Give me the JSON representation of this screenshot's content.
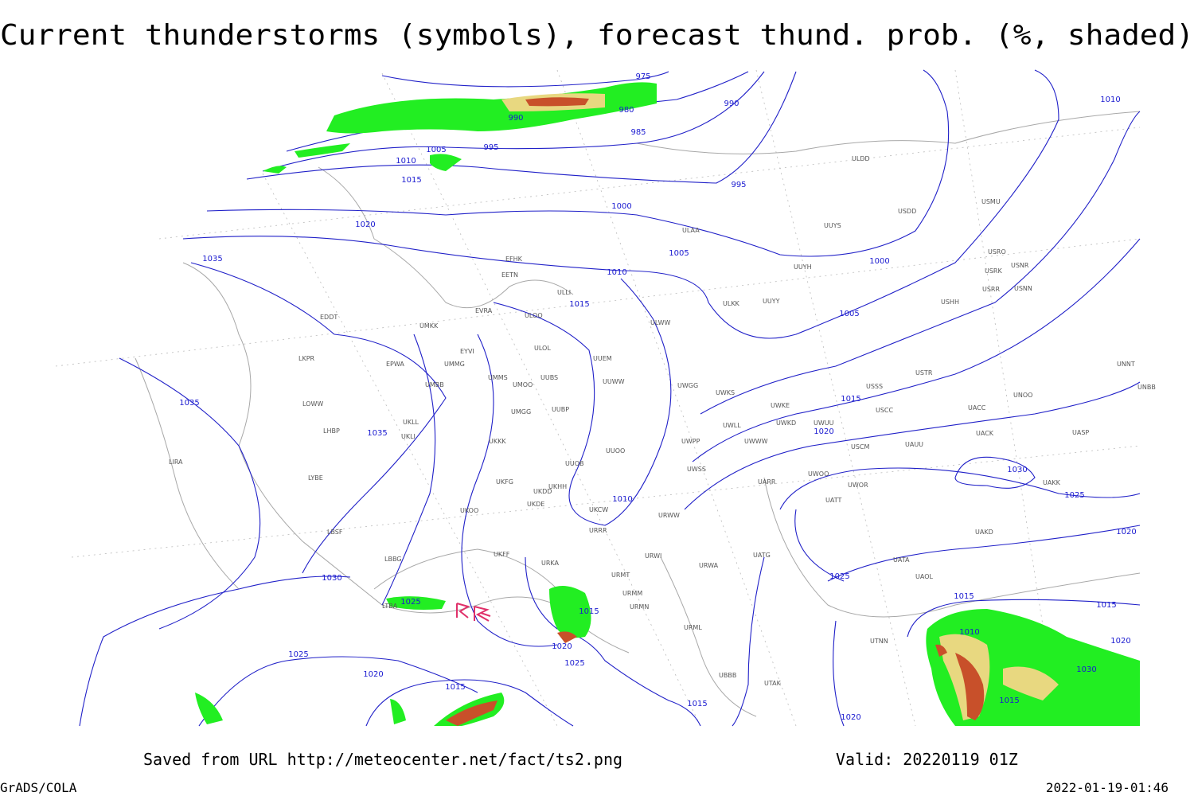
{
  "header": {
    "title": "Current thunderstorms (symbols), forecast thund. prob. (%, shaded)"
  },
  "footer": {
    "saved": "Saved from URL http://meteocenter.net/fact/ts2.png",
    "valid": "Valid: 20220119 01Z",
    "software": "GrADS/COLA",
    "timestamp": "2022-01-19-01:46"
  },
  "isobar_labels": [
    975,
    980,
    985,
    990,
    995,
    990,
    995,
    1000,
    1005,
    1010,
    1015,
    1020,
    1005,
    1010,
    1015,
    1000,
    1005,
    1010,
    1015,
    1020,
    1025,
    1030,
    1020,
    1025,
    1035,
    1035,
    1035,
    1030,
    1025,
    1025,
    1020,
    1015,
    1015,
    1020,
    1025,
    1010,
    1015,
    1020,
    1015,
    1010,
    1015,
    1015,
    1020,
    1030
  ],
  "stations": [
    "ULDD",
    "USDD",
    "USMU",
    "UUYS",
    "ULAA",
    "UUYH",
    "USRO",
    "USRK",
    "USNR",
    "USRR",
    "USNN",
    "USHH",
    "EFHK",
    "EETN",
    "ULLI",
    "ULKK",
    "UUYY",
    "EVRA",
    "ULOO",
    "ULWW",
    "EDDT",
    "UMKK",
    "EYVI",
    "ULOL",
    "UUEM",
    "LKPR",
    "EPWA",
    "UMMG",
    "UMMS",
    "UMOO",
    "UUBS",
    "UUWW",
    "UWGG",
    "UWKS",
    "USSS",
    "USTR",
    "UNNT",
    "UNBB",
    "UMBB",
    "LOWW",
    "UUBP",
    "UMGG",
    "UWKE",
    "UWLL",
    "UWKD",
    "UWUU",
    "USCC",
    "UACC",
    "UNOO",
    "LHBP",
    "UKLL",
    "UKLI",
    "UKKK",
    "UWPP",
    "UWWW",
    "USCM",
    "UAUU",
    "UACK",
    "UASP",
    "LIRA",
    "UUOO",
    "UUOB",
    "UWSS",
    "UWOO",
    "UWOR",
    "UAKK",
    "LYBE",
    "UKFG",
    "URRR",
    "UKOO",
    "UKDD",
    "UKHH",
    "UKDE",
    "UKCW",
    "URWW",
    "UATT",
    "UAKD",
    "LBSF",
    "UARR",
    "URWA",
    "UATG",
    "UATA",
    "UAOL",
    "LBBG",
    "UKFF",
    "URKA",
    "URMT",
    "URWI",
    "URMM",
    "URMN",
    "LTBA",
    "URML",
    "UBBB",
    "UTAK",
    "UTNN"
  ]
}
